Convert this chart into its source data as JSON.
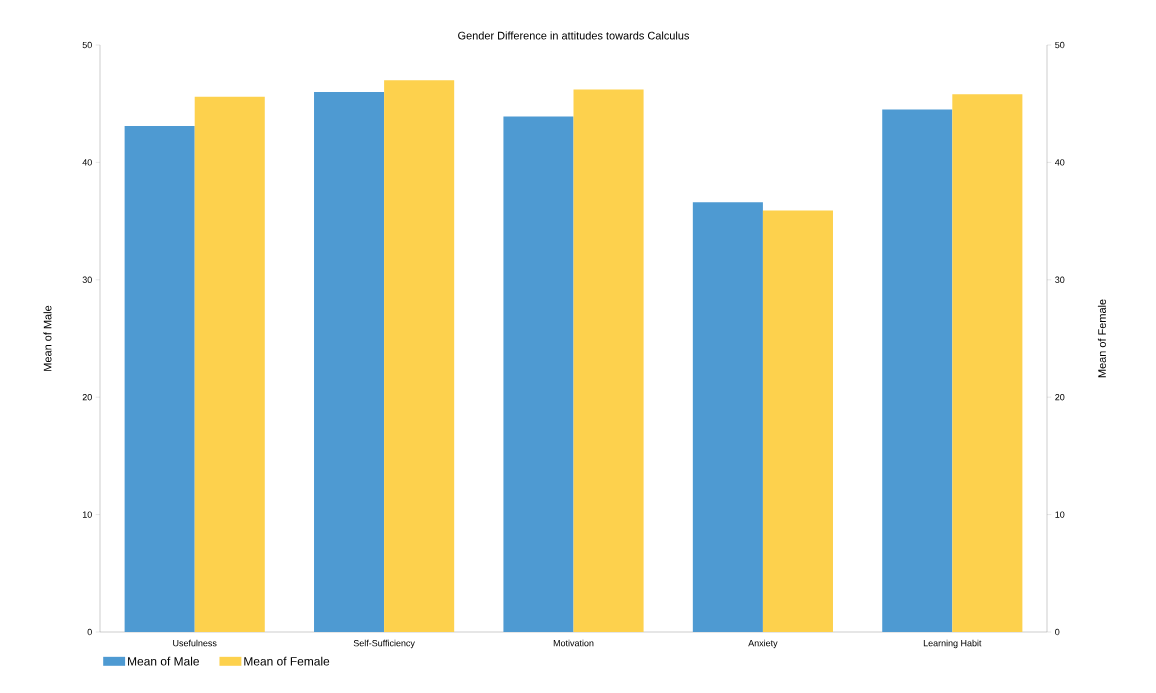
{
  "chart_data": {
    "type": "bar",
    "title": "Gender Difference in attitudes towards Calculus",
    "categories": [
      "Usefulness",
      "Self-Sufficiency",
      "Motivation",
      "Anxiety",
      "Learning Habit"
    ],
    "series": [
      {
        "name": "Mean of Male",
        "color": "#4e9ad2",
        "values": [
          43.1,
          46.0,
          43.9,
          36.6,
          44.5
        ]
      },
      {
        "name": "Mean of Female",
        "color": "#fdd14d",
        "axis": "y2",
        "values": [
          45.6,
          47.0,
          46.2,
          35.9,
          45.8
        ]
      }
    ],
    "ylabel": "Mean of Male",
    "y2label": "Mean of Female",
    "ylim": [
      0,
      50
    ],
    "yticks": [
      0,
      10,
      20,
      30,
      40,
      50
    ],
    "y2lim": [
      0,
      50
    ],
    "y2ticks": [
      0,
      10,
      20,
      30,
      40,
      50
    ],
    "legend": "bottom left",
    "grid": false
  }
}
